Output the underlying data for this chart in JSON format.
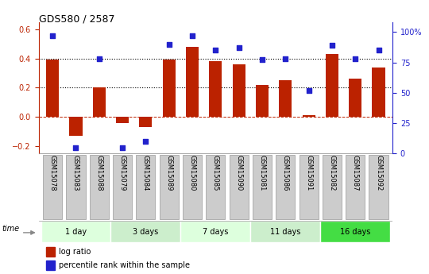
{
  "title": "GDS580 / 2587",
  "samples": [
    "GSM15078",
    "GSM15083",
    "GSM15088",
    "GSM15079",
    "GSM15084",
    "GSM15089",
    "GSM15080",
    "GSM15085",
    "GSM15090",
    "GSM15081",
    "GSM15086",
    "GSM15091",
    "GSM15082",
    "GSM15087",
    "GSM15092"
  ],
  "log_ratio": [
    0.39,
    -0.13,
    0.2,
    -0.04,
    -0.07,
    0.39,
    0.48,
    0.38,
    0.36,
    0.22,
    0.25,
    0.01,
    0.43,
    0.26,
    0.34
  ],
  "percentile_rank": [
    97,
    5,
    78,
    5,
    10,
    90,
    97,
    85,
    87,
    77,
    78,
    52,
    89,
    78,
    85
  ],
  "bar_color": "#BB2200",
  "dot_color": "#2222CC",
  "groups": [
    {
      "label": "1 day",
      "start": 0,
      "end": 3,
      "color": "#DDFFDD"
    },
    {
      "label": "3 days",
      "start": 3,
      "end": 6,
      "color": "#CCEECC"
    },
    {
      "label": "7 days",
      "start": 6,
      "end": 9,
      "color": "#DDFFDD"
    },
    {
      "label": "11 days",
      "start": 9,
      "end": 12,
      "color": "#CCEECC"
    },
    {
      "label": "16 days",
      "start": 12,
      "end": 15,
      "color": "#44DD44"
    }
  ],
  "ylim_left": [
    -0.25,
    0.65
  ],
  "ylim_right": [
    0,
    108.3
  ],
  "yticks_left": [
    -0.2,
    0.0,
    0.2,
    0.4,
    0.6
  ],
  "yticks_right": [
    0,
    25,
    50,
    75,
    100
  ],
  "ytick_labels_right": [
    "0",
    "25",
    "50",
    "75",
    "100%"
  ],
  "grid_values": [
    0.2,
    0.4
  ],
  "bg_color": "#FFFFFF",
  "label_box_color": "#CCCCCC",
  "label_box_edge": "#999999"
}
